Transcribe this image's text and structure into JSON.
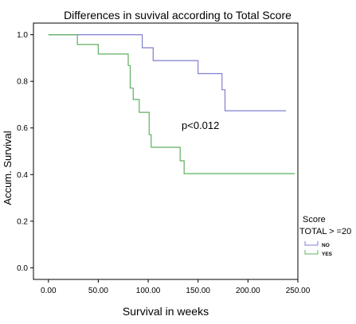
{
  "chart_data": {
    "type": "line",
    "title": "Differences in suvival according to Total Score",
    "xlabel": "Survival in weeks",
    "ylabel": "Accum. Survival",
    "xlim": [
      -15,
      250
    ],
    "ylim": [
      -0.05,
      1.05
    ],
    "x_ticks": [
      0,
      50,
      100,
      150,
      200,
      250
    ],
    "x_tick_labels": [
      "0.00",
      "50.00",
      "100.00",
      "150.00",
      "200.00",
      "250.00"
    ],
    "y_ticks": [
      0.0,
      0.2,
      0.4,
      0.6,
      0.8,
      1.0
    ],
    "y_tick_labels": [
      "0.0",
      "0.2",
      "0.4",
      "0.6",
      "0.8",
      "1.0"
    ],
    "annotation": "p<0.012",
    "grid": false,
    "legend": {
      "placement": "bottom-right",
      "title": "Score",
      "subtitle": "TOTAL > =20"
    },
    "series": [
      {
        "name": "NO",
        "color": "#7f7fd0",
        "points": [
          [
            0,
            1.0
          ],
          [
            94,
            1.0
          ],
          [
            94,
            0.944
          ],
          [
            105,
            0.944
          ],
          [
            105,
            0.889
          ],
          [
            150,
            0.889
          ],
          [
            150,
            0.833
          ],
          [
            174,
            0.833
          ],
          [
            174,
            0.764
          ],
          [
            177,
            0.764
          ],
          [
            177,
            0.674
          ],
          [
            238,
            0.674
          ]
        ]
      },
      {
        "name": "YES",
        "color": "#5fb05f",
        "points": [
          [
            0,
            1.0
          ],
          [
            29,
            1.0
          ],
          [
            29,
            0.958
          ],
          [
            50,
            0.958
          ],
          [
            50,
            0.917
          ],
          [
            80,
            0.917
          ],
          [
            80,
            0.868
          ],
          [
            82,
            0.868
          ],
          [
            82,
            0.771
          ],
          [
            85,
            0.771
          ],
          [
            85,
            0.722
          ],
          [
            91,
            0.722
          ],
          [
            91,
            0.667
          ],
          [
            101,
            0.667
          ],
          [
            101,
            0.571
          ],
          [
            103,
            0.571
          ],
          [
            103,
            0.517
          ],
          [
            132,
            0.517
          ],
          [
            132,
            0.459
          ],
          [
            136,
            0.459
          ],
          [
            136,
            0.404
          ],
          [
            247,
            0.404
          ]
        ]
      }
    ]
  }
}
